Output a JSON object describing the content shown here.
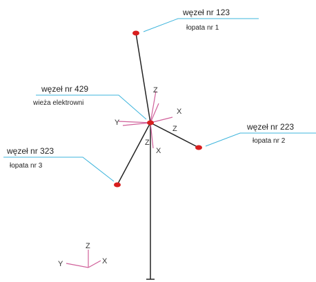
{
  "nodes": [
    {
      "label": "węzeł nr 123",
      "sublabel": "łopata nr 1"
    },
    {
      "label": "węzeł nr 429",
      "sublabel": "wieża elektrowni"
    },
    {
      "label": "węzeł nr 223",
      "sublabel": "łopata nr 2"
    },
    {
      "label": "węzeł nr 323",
      "sublabel": "łopata nr 3"
    }
  ],
  "hub_axes": [
    "Z",
    "X",
    "Y",
    "Z",
    "Z",
    "X"
  ],
  "global_axes": {
    "z": "Z",
    "y": "Y",
    "x": "X"
  }
}
